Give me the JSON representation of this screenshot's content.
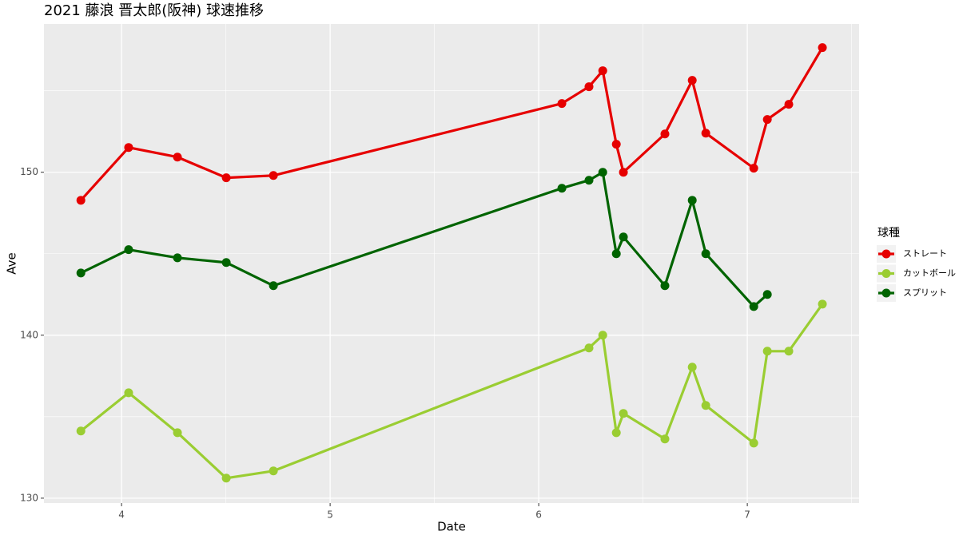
{
  "chart_data": {
    "type": "line",
    "title": "2021 藤浪 晋太郎(阪神) 球速推移",
    "x_label": "Date",
    "y_label": "Ave",
    "legend_title": "球種",
    "legend": "right",
    "grid": true,
    "xlim": [
      3.628,
      7.536
    ],
    "xticks": [
      4,
      5,
      6,
      7
    ],
    "ylim": [
      129.7,
      159.1
    ],
    "yticks": [
      130,
      140,
      150
    ],
    "series": [
      {
        "name": "ストレート",
        "color": "#e60000",
        "x": [
          3.805,
          4.034,
          4.268,
          4.502,
          4.728,
          6.111,
          6.241,
          6.307,
          6.372,
          6.406,
          6.605,
          6.736,
          6.801,
          7.031,
          7.096,
          7.199,
          7.36
        ],
        "values": [
          148.28,
          151.52,
          150.93,
          149.66,
          149.8,
          154.22,
          155.25,
          156.23,
          151.72,
          150.0,
          152.35,
          155.64,
          152.4,
          150.25,
          153.24,
          154.17,
          157.65
        ]
      },
      {
        "name": "カットボール",
        "color": "#9acd32",
        "x": [
          3.805,
          4.034,
          4.268,
          4.502,
          4.728,
          6.241,
          6.307,
          6.372,
          6.406,
          6.605,
          6.736,
          6.801,
          7.031,
          7.096,
          7.199,
          7.36
        ],
        "values": [
          134.12,
          136.47,
          134.02,
          131.23,
          131.67,
          139.22,
          140.0,
          134.02,
          135.2,
          133.63,
          138.04,
          135.69,
          133.38,
          139.02,
          139.02,
          141.91
        ]
      },
      {
        "name": "スプリット",
        "color": "#006400",
        "x": [
          3.805,
          4.034,
          4.268,
          4.502,
          4.728,
          6.111,
          6.241,
          6.307,
          6.372,
          6.406,
          6.605,
          6.736,
          6.801,
          7.031,
          7.096
        ],
        "values": [
          143.82,
          145.25,
          144.75,
          144.46,
          143.04,
          149.02,
          149.51,
          150.0,
          145.0,
          146.03,
          143.04,
          148.28,
          145.0,
          141.76,
          142.5
        ]
      }
    ]
  }
}
